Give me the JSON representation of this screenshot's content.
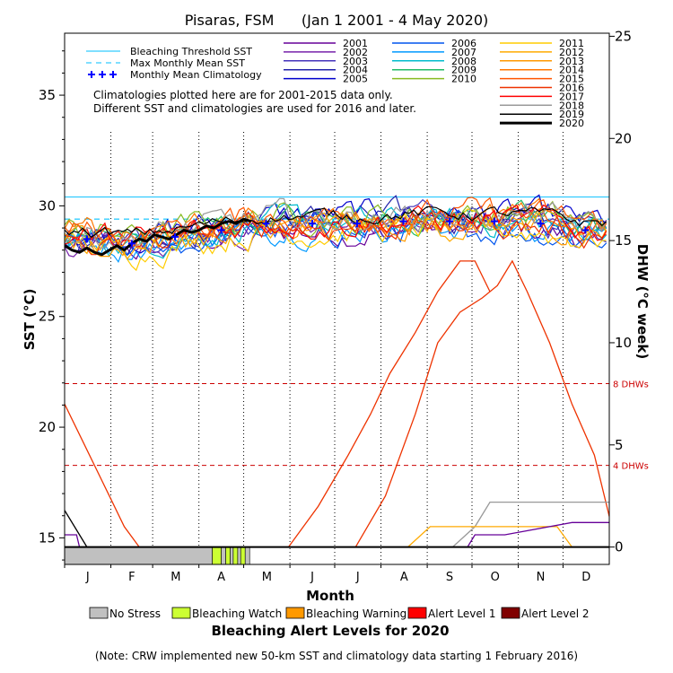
{
  "chart_data": {
    "type": "line",
    "title": "Pisaras, FSM      (Jan 1 2001 - 4 May 2020)",
    "xlabel": "Month",
    "ylabel_left": "SST (°C)",
    "ylabel_right": "DHW (°C week)",
    "ylim_left": [
      13.8,
      37.8
    ],
    "ylim_right": [
      -0.85,
      25.15
    ],
    "yticks_left": [
      15,
      20,
      25,
      30,
      35
    ],
    "yticks_right": [
      0,
      5,
      10,
      15,
      20,
      25
    ],
    "months": [
      "J",
      "F",
      "M",
      "A",
      "M",
      "J",
      "J",
      "A",
      "S",
      "O",
      "N",
      "D"
    ],
    "reference_lines": {
      "bleaching_threshold_sst": 30.4,
      "max_monthly_mean_sst": 29.4,
      "dhw_levels": [
        {
          "value": 8,
          "label": "8 DHWs"
        },
        {
          "value": 4,
          "label": "4 DHWs"
        }
      ]
    },
    "legend_reference": [
      {
        "name": "Bleaching Threshold SST",
        "color": "#33ccff",
        "style": "solid"
      },
      {
        "name": "Max Monthly Mean SST",
        "color": "#33ccff",
        "style": "dashed"
      },
      {
        "name": "Monthly Mean Climatology",
        "color": "#0000ff",
        "style": "cross"
      }
    ],
    "note_lines": [
      "Climatologies plotted here are for 2001-2015 data only.",
      "Different SST and climatologies are used for 2016 and later."
    ],
    "series": [
      {
        "name": "2001",
        "color": "#660099",
        "width": 1.2
      },
      {
        "name": "2002",
        "color": "#7722aa",
        "width": 1.2
      },
      {
        "name": "2003",
        "color": "#4433bb",
        "width": 1.2
      },
      {
        "name": "2004",
        "color": "#2222aa",
        "width": 1.2
      },
      {
        "name": "2005",
        "color": "#0000cc",
        "width": 1.2
      },
      {
        "name": "2006",
        "color": "#0055ee",
        "width": 1.2
      },
      {
        "name": "2007",
        "color": "#0099ff",
        "width": 1.2
      },
      {
        "name": "2008",
        "color": "#00bbcc",
        "width": 1.2
      },
      {
        "name": "2009",
        "color": "#22bb66",
        "width": 1.2
      },
      {
        "name": "2010",
        "color": "#88bb22",
        "width": 1.2
      },
      {
        "name": "2011",
        "color": "#ffcc00",
        "width": 1.2
      },
      {
        "name": "2012",
        "color": "#ffaa00",
        "width": 1.2
      },
      {
        "name": "2013",
        "color": "#ff9900",
        "width": 1.2
      },
      {
        "name": "2014",
        "color": "#ff7700",
        "width": 1.2
      },
      {
        "name": "2015",
        "color": "#ff5500",
        "width": 1.2
      },
      {
        "name": "2016",
        "color": "#ee3300",
        "width": 1.2
      },
      {
        "name": "2017",
        "color": "#ff0000",
        "width": 1.2
      },
      {
        "name": "2018",
        "color": "#999999",
        "width": 1.2
      },
      {
        "name": "2019",
        "color": "#000000",
        "width": 1.2
      },
      {
        "name": "2020",
        "color": "#000000",
        "width": 3
      }
    ],
    "sst_2020": {
      "x": [
        0,
        5,
        10,
        15,
        20,
        25,
        30,
        35,
        40,
        45,
        50,
        55,
        60,
        65,
        70,
        75,
        80,
        85,
        90,
        95,
        100,
        105,
        110,
        115,
        120,
        125
      ],
      "y": [
        28.2,
        28.0,
        27.9,
        28.1,
        27.9,
        27.8,
        28.0,
        28.2,
        28.0,
        28.3,
        28.5,
        28.4,
        28.7,
        28.6,
        28.5,
        28.7,
        28.9,
        28.8,
        28.9,
        29.1,
        29.0,
        29.2,
        29.3,
        29.2,
        29.4,
        29.3
      ]
    },
    "sst_2019": {
      "x": [
        120,
        140,
        160,
        180,
        200,
        220,
        240,
        260,
        280,
        300,
        320,
        340,
        365
      ],
      "y": [
        29.3,
        29.5,
        29.6,
        29.8,
        29.8,
        29.9,
        29.7,
        29.6,
        29.8,
        29.8,
        29.7,
        29.3,
        29.0
      ]
    },
    "climatology": {
      "x": [
        15,
        45,
        74,
        105,
        135,
        166,
        196,
        227,
        258,
        288,
        319,
        349
      ],
      "y": [
        28.5,
        28.3,
        28.6,
        28.9,
        29.2,
        29.2,
        29.2,
        29.3,
        29.3,
        29.3,
        29.2,
        28.9
      ]
    },
    "dhw_series": [
      {
        "name": "DHW-A",
        "color": "#ee3300",
        "x": [
          0,
          20,
          40,
          50,
          70
        ],
        "y": [
          7.0,
          4.0,
          1.0,
          0,
          0
        ]
      },
      {
        "name": "DHW-B",
        "color": "#000000",
        "x": [
          0,
          10,
          15
        ],
        "y": [
          1.8,
          0.6,
          0
        ]
      },
      {
        "name": "DHW-C",
        "color": "#ee3300",
        "x": [
          150,
          170,
          190,
          205,
          218,
          235,
          250,
          265,
          275,
          285
        ],
        "y": [
          0,
          2.0,
          4.5,
          6.5,
          8.5,
          10.5,
          12.5,
          14.0,
          14.0,
          12.5
        ]
      },
      {
        "name": "DHW-D",
        "color": "#ee3300",
        "x": [
          195,
          215,
          235,
          250,
          265,
          280,
          290,
          300,
          310,
          325,
          340,
          355,
          365
        ],
        "y": [
          0,
          2.5,
          6.5,
          10.0,
          11.5,
          12.2,
          12.8,
          14.0,
          12.5,
          10.0,
          7.0,
          4.5,
          1.5
        ]
      },
      {
        "name": "DHW-E",
        "color": "#999999",
        "x": [
          190,
          260,
          275,
          285,
          365
        ],
        "y": [
          0,
          0,
          1.0,
          2.2,
          2.2
        ]
      },
      {
        "name": "DHW-F",
        "color": "#ffaa00",
        "x": [
          230,
          245,
          330,
          340
        ],
        "y": [
          0,
          1.0,
          1.0,
          0
        ]
      },
      {
        "name": "DHW-G",
        "color": "#660099",
        "x": [
          0,
          8,
          10,
          270,
          275,
          295,
          340,
          345,
          365
        ],
        "y": [
          0.6,
          0.6,
          0,
          0,
          0.6,
          0.6,
          1.2,
          1.2,
          1.2
        ]
      }
    ],
    "alert_bar_2020": {
      "segments": [
        {
          "from": 0,
          "to": 99,
          "level": "No Stress"
        },
        {
          "from": 99,
          "to": 105,
          "level": "Bleaching Watch"
        },
        {
          "from": 105,
          "to": 108,
          "level": "No Stress"
        },
        {
          "from": 108,
          "to": 111,
          "level": "Bleaching Watch"
        },
        {
          "from": 111,
          "to": 113,
          "level": "No Stress"
        },
        {
          "from": 113,
          "to": 116,
          "level": "Bleaching Watch"
        },
        {
          "from": 116,
          "to": 118,
          "level": "No Stress"
        },
        {
          "from": 118,
          "to": 121,
          "level": "Bleaching Watch"
        },
        {
          "from": 121,
          "to": 124,
          "level": "No Stress"
        }
      ]
    }
  },
  "alert_legend": {
    "title": "Bleaching Alert Levels for 2020",
    "items": [
      {
        "label": "No Stress",
        "color": "#c0c0c0"
      },
      {
        "label": "Bleaching Watch",
        "color": "#ccff33"
      },
      {
        "label": "Bleaching Warning",
        "color": "#ff9900"
      },
      {
        "label": "Alert Level 1",
        "color": "#ff0000"
      },
      {
        "label": "Alert Level 2",
        "color": "#800000"
      }
    ]
  },
  "footnote": "(Note: CRW implemented new 50-km SST and climatology data starting 1 February 2016)"
}
